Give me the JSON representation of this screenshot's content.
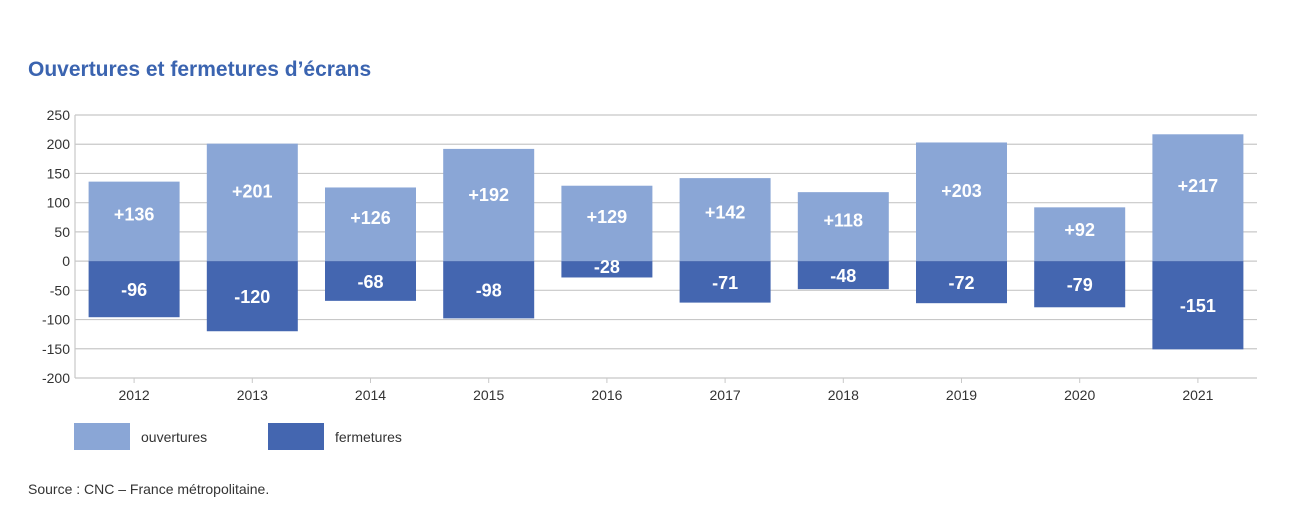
{
  "title": "Ouvertures et fermetures d’écrans",
  "source": "Source : CNC – France métropolitaine.",
  "colors": {
    "openings": "#8aa6d6",
    "closings": "#4466b0",
    "title": "#3b64b0",
    "grid": "#c8c8c8"
  },
  "chart_data": {
    "type": "bar",
    "title": "Ouvertures et fermetures d’écrans",
    "xlabel": "",
    "ylabel": "",
    "categories": [
      "2012",
      "2013",
      "2014",
      "2015",
      "2016",
      "2017",
      "2018",
      "2019",
      "2020",
      "2021"
    ],
    "series": [
      {
        "name": "ouvertures",
        "values": [
          136,
          201,
          126,
          192,
          129,
          142,
          118,
          203,
          92,
          217
        ],
        "labels": [
          "+136",
          "+201",
          "+126",
          "+192",
          "+129",
          "+142",
          "+118",
          "+203",
          "+92",
          "+217"
        ]
      },
      {
        "name": "fermetures",
        "values": [
          -96,
          -120,
          -68,
          -98,
          -28,
          -71,
          -48,
          -72,
          -79,
          -151
        ],
        "labels": [
          "-96",
          "-120",
          "-68",
          "-98",
          "-28",
          "-71",
          "-48",
          "-72",
          "-79",
          "-151"
        ]
      }
    ],
    "ylim": [
      -200,
      250
    ],
    "yticks": [
      250,
      200,
      150,
      100,
      50,
      0,
      -50,
      -100,
      -150,
      -200
    ],
    "ytick_labels": [
      "250",
      "200",
      "150",
      "100",
      "50",
      "0",
      "-50",
      "-100",
      "-150",
      "-200"
    ],
    "grid": true,
    "legend_position": "bottom-left",
    "stacked": "diverging"
  }
}
